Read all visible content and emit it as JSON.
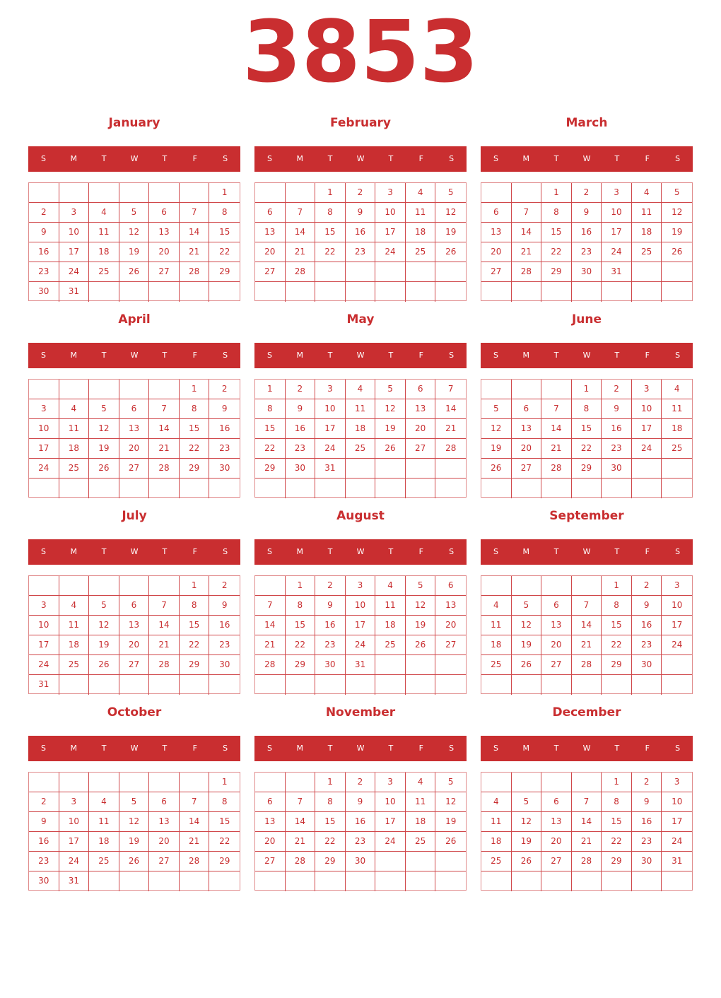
{
  "year": "3853",
  "weekday_labels": [
    "S",
    "M",
    "T",
    "W",
    "T",
    "F",
    "S"
  ],
  "accent_color": "#c92e30",
  "months": [
    {
      "name": "January",
      "first_weekday": 6,
      "days": 31
    },
    {
      "name": "February",
      "first_weekday": 2,
      "days": 28
    },
    {
      "name": "March",
      "first_weekday": 2,
      "days": 31
    },
    {
      "name": "April",
      "first_weekday": 5,
      "days": 30
    },
    {
      "name": "May",
      "first_weekday": 0,
      "days": 31
    },
    {
      "name": "June",
      "first_weekday": 3,
      "days": 30
    },
    {
      "name": "July",
      "first_weekday": 5,
      "days": 31
    },
    {
      "name": "August",
      "first_weekday": 1,
      "days": 31
    },
    {
      "name": "September",
      "first_weekday": 4,
      "days": 30
    },
    {
      "name": "October",
      "first_weekday": 6,
      "days": 31
    },
    {
      "name": "November",
      "first_weekday": 2,
      "days": 30
    },
    {
      "name": "December",
      "first_weekday": 4,
      "days": 31
    }
  ]
}
